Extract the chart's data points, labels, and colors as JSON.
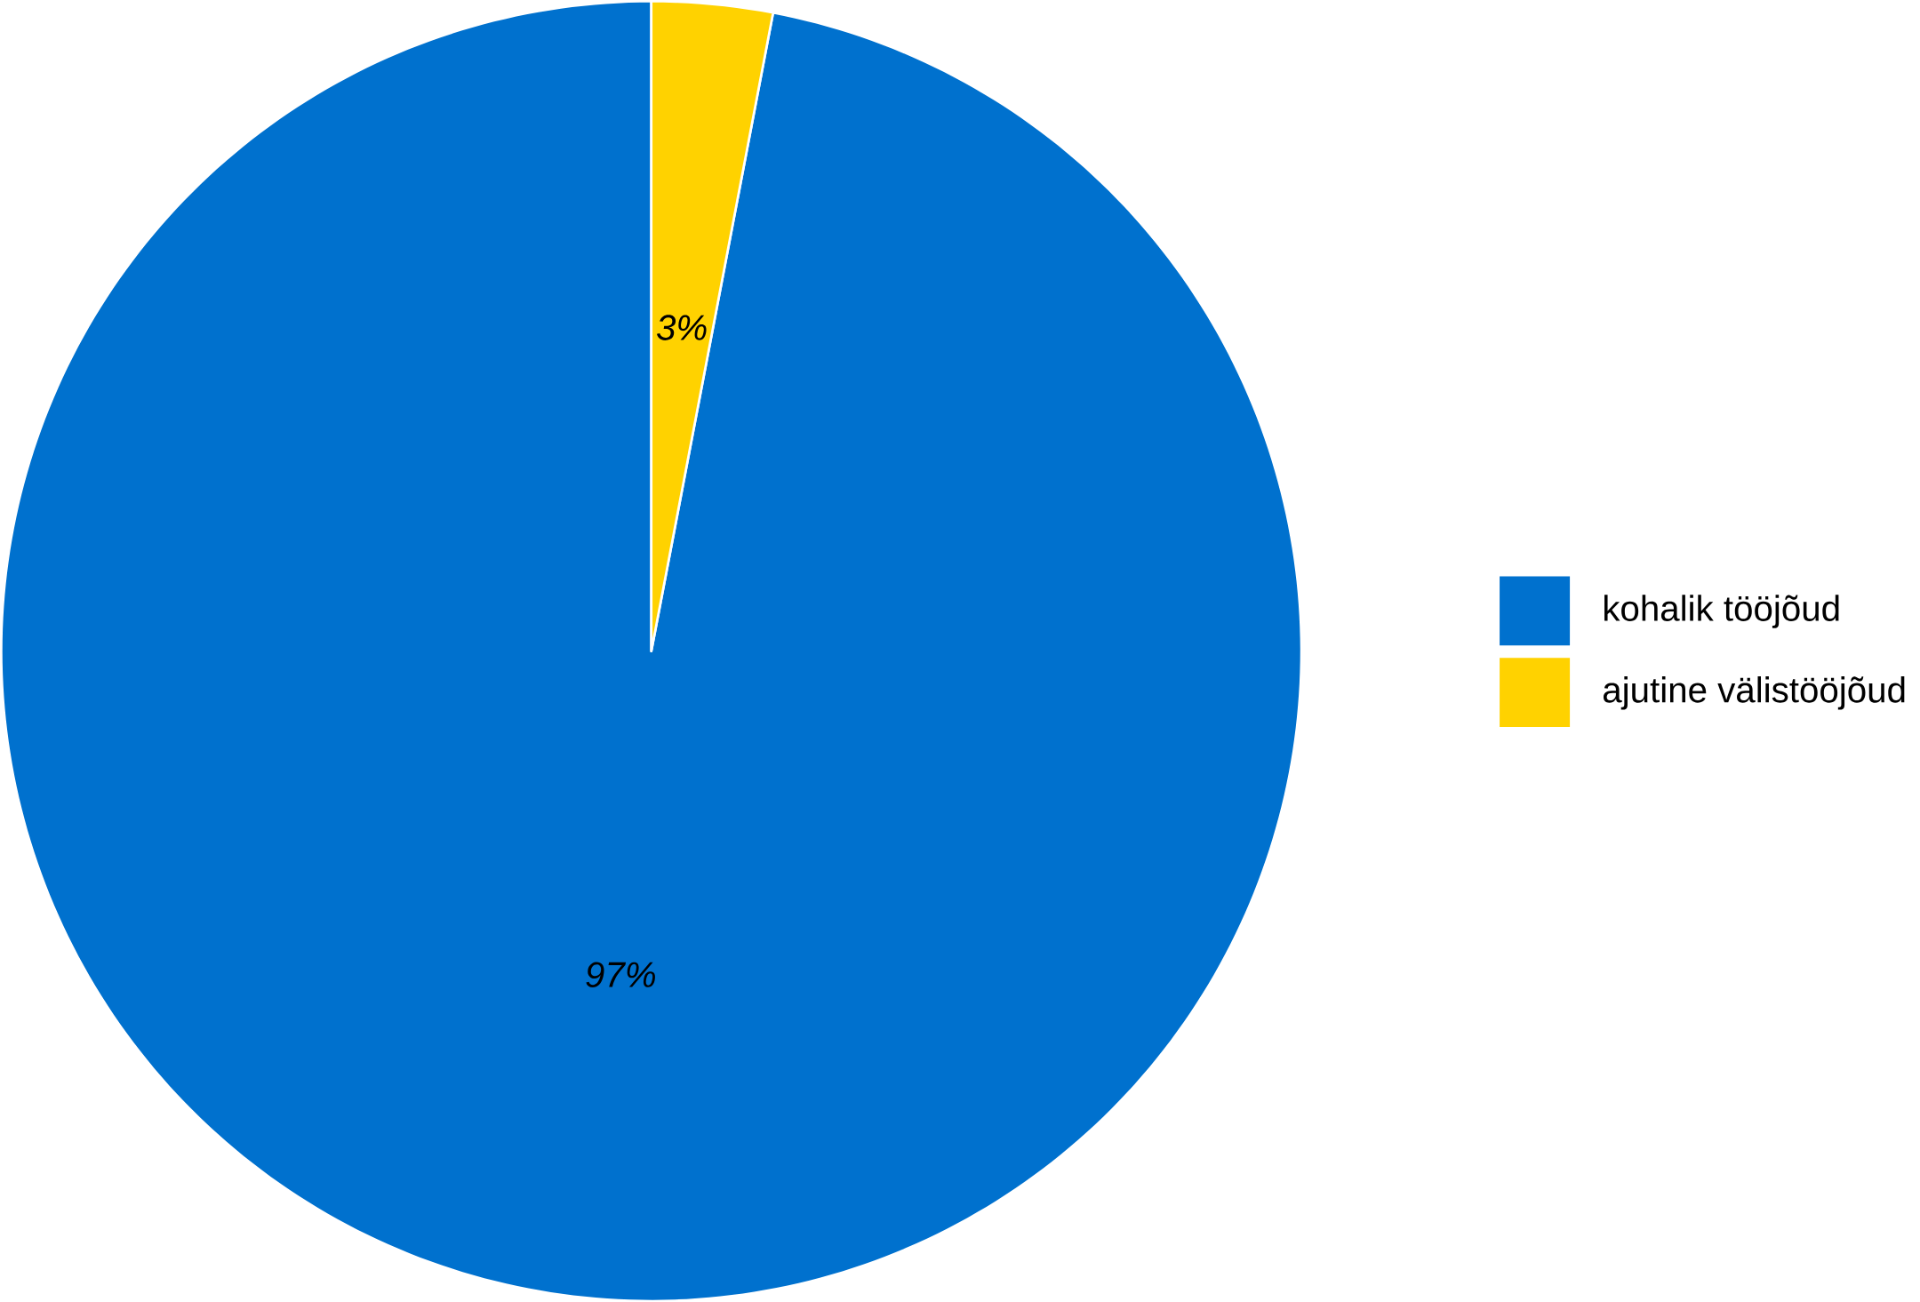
{
  "chart_data": {
    "type": "pie",
    "categories": [
      "kohalik tööjõud",
      "ajutine välistööjõud"
    ],
    "values": [
      97,
      3
    ],
    "colors": [
      "#0071ce",
      "#ffd200"
    ],
    "value_labels": [
      "97%",
      "3%"
    ],
    "legend": "right"
  }
}
